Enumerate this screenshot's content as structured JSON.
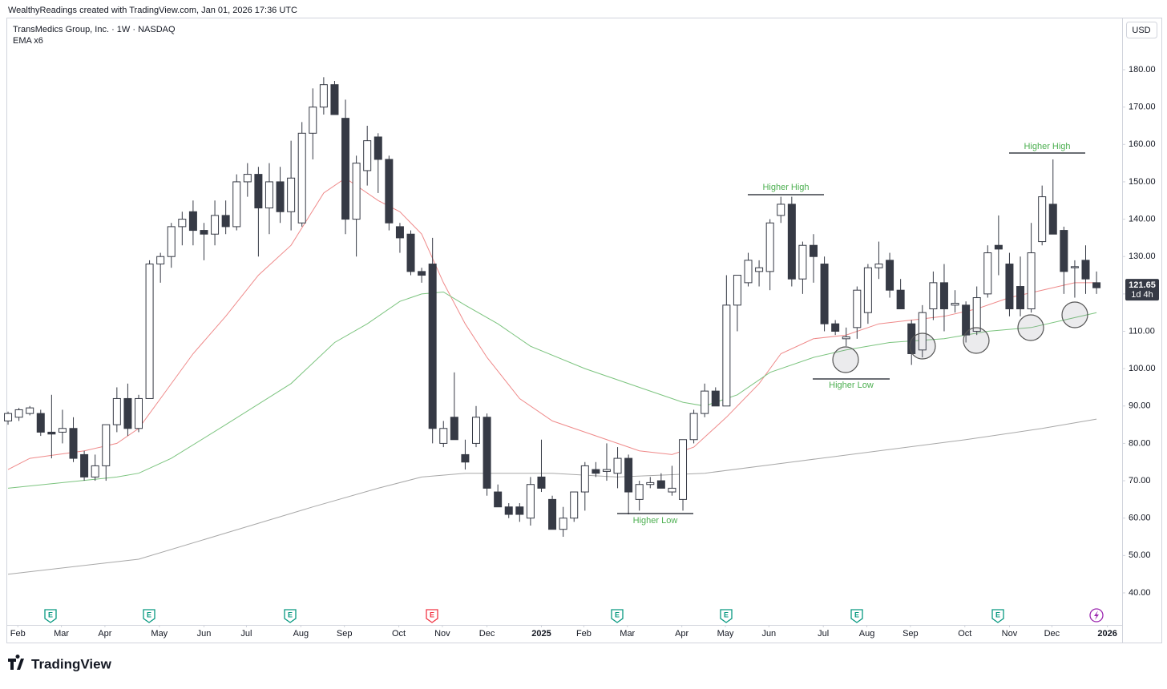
{
  "header": "WealthyReadings created with TradingView.com, Jan 01, 2026 17:36 UTC",
  "brand": "TradingView",
  "chart_data": {
    "type": "candlestick",
    "title": "TransMedics Group, Inc. · 1W · NASDAQ",
    "subtitle": "EMA x6",
    "currency": "USD",
    "countdown": "1d 4h",
    "up_color": "#ffffff",
    "down_color": "#363a45",
    "border_color": "#363a45",
    "open": [
      86,
      87,
      88,
      88,
      83,
      83,
      84,
      77,
      71,
      74,
      85,
      92,
      84,
      92,
      128,
      130,
      138,
      142,
      137,
      136,
      141,
      138,
      150,
      152,
      143,
      150,
      142,
      139,
      163,
      170,
      176,
      167,
      140,
      153,
      162,
      156,
      138,
      136,
      126,
      128,
      80,
      87,
      77,
      80,
      87,
      67,
      63,
      63,
      60,
      71,
      65,
      57,
      60,
      67,
      73,
      72.5,
      72,
      76,
      65,
      69,
      70,
      67,
      65,
      81,
      88,
      94,
      90,
      117,
      123,
      126,
      126,
      141,
      144,
      124,
      133,
      128,
      112,
      108,
      111,
      115,
      127,
      129,
      121,
      112,
      105,
      116,
      123,
      117,
      117,
      110,
      120,
      133,
      128,
      122,
      116,
      134,
      144,
      137,
      127,
      129,
      123
    ],
    "high": [
      88.5,
      89.5,
      90,
      89,
      93,
      89,
      87,
      78,
      77,
      85,
      95,
      96,
      93,
      129,
      131,
      139,
      142,
      145,
      139,
      145,
      145,
      152,
      155,
      154,
      155,
      154,
      161,
      166,
      175,
      178,
      177,
      172,
      157,
      165,
      163,
      157,
      139,
      137,
      127,
      135,
      86,
      99,
      81,
      90,
      88,
      69,
      64,
      64,
      71,
      81,
      66,
      63,
      67,
      75,
      75,
      80,
      79,
      77,
      70,
      71,
      72,
      74,
      81,
      89,
      96,
      95,
      125,
      125,
      131,
      129,
      140,
      146,
      146,
      134,
      136,
      130,
      113,
      111,
      122,
      128,
      134,
      131,
      124,
      113,
      117,
      126,
      128,
      121,
      118,
      122,
      133,
      141,
      131,
      130,
      139,
      149,
      156,
      138,
      129,
      133,
      126
    ],
    "low": [
      85,
      86,
      87.5,
      82,
      76,
      80,
      75,
      70,
      70,
      70,
      83,
      82,
      83,
      92,
      123,
      127,
      133,
      133,
      129,
      133,
      136,
      137,
      146,
      130,
      136,
      139,
      137,
      138,
      156,
      168,
      168,
      136,
      130,
      149,
      147,
      137,
      131,
      125,
      123,
      80,
      79,
      81,
      73,
      79,
      66,
      63,
      60,
      59,
      58,
      67,
      57,
      55,
      59,
      62,
      71,
      70,
      68,
      61,
      62,
      68,
      68,
      66,
      62,
      80,
      87,
      90,
      90,
      110,
      122,
      122,
      121,
      139,
      122,
      120,
      123,
      110,
      109,
      106,
      108,
      112,
      124,
      119,
      116,
      101,
      103,
      113,
      110,
      115,
      107,
      109,
      119,
      125,
      114,
      114,
      115,
      133,
      136,
      120,
      119,
      120,
      120
    ],
    "close": [
      88,
      89,
      89.5,
      83,
      82.5,
      84,
      76,
      71,
      74,
      85,
      92,
      84,
      92,
      128,
      130,
      138,
      140,
      137,
      136,
      141,
      138,
      150,
      152,
      143,
      150,
      142,
      151,
      163,
      170,
      176,
      168,
      140,
      155,
      161,
      156,
      139,
      135,
      126,
      125,
      84,
      84,
      81,
      75,
      87,
      68,
      63,
      61,
      61,
      69,
      68,
      57,
      60,
      67,
      74,
      72,
      73,
      76,
      67,
      69,
      69.5,
      68,
      68,
      81,
      88,
      94,
      90,
      117,
      125,
      129,
      127,
      139,
      144,
      124,
      133,
      130,
      112,
      110,
      108.5,
      121,
      127,
      128,
      121,
      116,
      104,
      115,
      123,
      116,
      117.5,
      109,
      119,
      131,
      132,
      116,
      116,
      131,
      146,
      136,
      126,
      127.3,
      124,
      121.65
    ],
    "lines": [
      {
        "color": "#ef8a8a",
        "x": [
          0,
          2,
          7,
          10,
          12,
          14,
          17,
          20,
          23,
          26,
          29,
          31,
          34,
          36,
          38,
          40,
          42,
          44,
          47,
          50,
          53,
          56,
          58,
          61,
          63,
          66,
          69,
          71,
          74,
          77,
          80,
          83,
          86,
          89,
          92,
          95,
          98,
          100
        ],
        "values": [
          73,
          76,
          78,
          80,
          84,
          92,
          104,
          114,
          125,
          133,
          147,
          151,
          145,
          142,
          136,
          123,
          112,
          103,
          92,
          86,
          83,
          80,
          78,
          77,
          79,
          87,
          96,
          104,
          108,
          109,
          112,
          113,
          114,
          116,
          119,
          121,
          123,
          123
        ]
      },
      {
        "color": "#7cc47f",
        "x": [
          0,
          10,
          12,
          15,
          20,
          26,
          30,
          33,
          36,
          38,
          40,
          42,
          45,
          48,
          53,
          58,
          62,
          64,
          67,
          70,
          74,
          77,
          81,
          86,
          90,
          94,
          97,
          100
        ],
        "values": [
          68,
          71,
          72,
          76,
          85,
          96,
          107,
          112,
          118,
          120,
          120.5,
          117,
          112,
          106,
          100,
          95,
          91,
          90,
          93,
          99,
          103,
          105,
          107,
          108,
          110,
          111,
          113,
          115
        ]
      },
      {
        "color": "#a8a8a8",
        "x": [
          0,
          12,
          20,
          28,
          34,
          38,
          42,
          50,
          56,
          64,
          72,
          80,
          88,
          95,
          100
        ],
        "values": [
          45,
          49,
          56,
          63,
          68,
          71,
          72,
          72,
          71,
          72,
          75,
          78,
          81,
          84,
          86.5
        ]
      }
    ],
    "annotations": [
      "Higher High",
      "Higher Low",
      "Higher Low",
      "Higher High"
    ],
    "events": [
      "E",
      "E",
      "E",
      "E",
      "E",
      "E",
      "E",
      "E"
    ],
    "xlim": [
      -0.15,
      102.35
    ],
    "xticks": [
      {
        "value": 0.9,
        "label": "Feb"
      },
      {
        "value": 4.9,
        "label": "Mar"
      },
      {
        "value": 8.9,
        "label": "Apr"
      },
      {
        "value": 13.9,
        "label": "May"
      },
      {
        "value": 18,
        "label": "Jun"
      },
      {
        "value": 21.9,
        "label": "Jul"
      },
      {
        "value": 26.9,
        "label": "Aug"
      },
      {
        "value": 30.9,
        "label": "Sep"
      },
      {
        "value": 35.9,
        "label": "Oct"
      },
      {
        "value": 39.9,
        "label": "Nov"
      },
      {
        "value": 44,
        "label": "Dec"
      },
      {
        "value": 49,
        "label": "2025"
      },
      {
        "value": 52.9,
        "label": "Feb"
      },
      {
        "value": 56.9,
        "label": "Mar"
      },
      {
        "value": 61.9,
        "label": "Apr"
      },
      {
        "value": 65.9,
        "label": "May"
      },
      {
        "value": 69.9,
        "label": "Jun"
      },
      {
        "value": 74.9,
        "label": "Jul"
      },
      {
        "value": 78.9,
        "label": "Aug"
      },
      {
        "value": 82.9,
        "label": "Sep"
      },
      {
        "value": 87.9,
        "label": "Oct"
      },
      {
        "value": 92,
        "label": "Nov"
      },
      {
        "value": 95.9,
        "label": "Dec"
      },
      {
        "value": 101,
        "label": "2026"
      }
    ],
    "ylim": [
      31.42,
      193.94
    ],
    "yticks": [
      {
        "value": 40,
        "label": "40.00"
      },
      {
        "value": 50,
        "label": "50.00"
      },
      {
        "value": 60,
        "label": "60.00"
      },
      {
        "value": 70,
        "label": "70.00"
      },
      {
        "value": 80,
        "label": "80.00"
      },
      {
        "value": 90,
        "label": "90.00"
      },
      {
        "value": 100,
        "label": "100.00"
      },
      {
        "value": 110,
        "label": "110.00"
      },
      {
        "value": 120,
        "label": "120.00"
      },
      {
        "value": 130,
        "label": "130.00"
      },
      {
        "value": 140,
        "label": "140.00"
      },
      {
        "value": 150,
        "label": "150.00"
      },
      {
        "value": 160,
        "label": "160.00"
      },
      {
        "value": 170,
        "label": "170.00"
      },
      {
        "value": 180,
        "label": "180.00"
      }
    ],
    "grid": false
  }
}
